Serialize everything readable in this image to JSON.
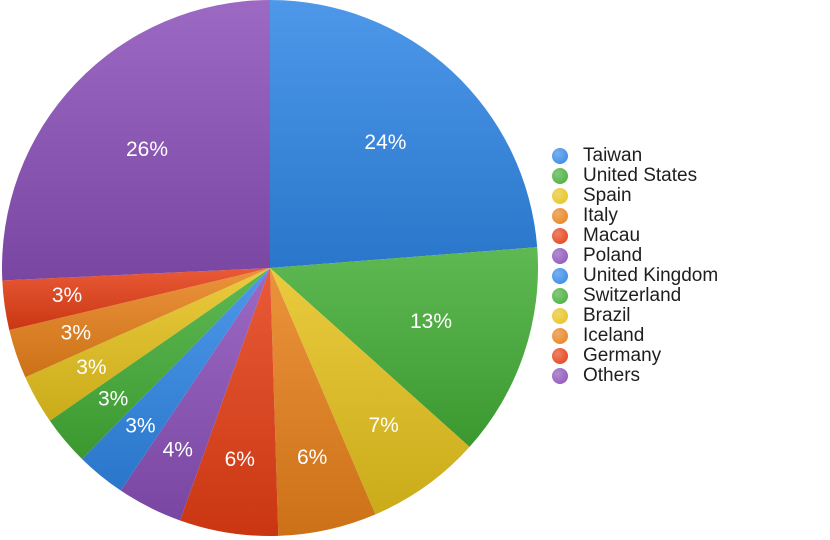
{
  "chart_data": {
    "type": "pie",
    "categories": [
      "Taiwan",
      "United States",
      "Spain",
      "Italy",
      "Macau",
      "Poland",
      "United Kingdom",
      "Switzerland",
      "Brazil",
      "Iceland",
      "Germany",
      "Others"
    ],
    "values": [
      24,
      13,
      7,
      6,
      6,
      4,
      3,
      3,
      3,
      3,
      3,
      26
    ],
    "labels": [
      "24%",
      "13%",
      "7%",
      "6%",
      "6%",
      "4%",
      "3%",
      "3%",
      "3%",
      "3%",
      "3%",
      "26%"
    ],
    "colors": [
      "#2f86e6",
      "#43ad35",
      "#e6c21c",
      "#e8801a",
      "#e53d14",
      "#8a4fb8",
      "#2f86e6",
      "#43ad35",
      "#e6c21c",
      "#e8801a",
      "#e53d14",
      "#8a4fb8"
    ],
    "legend_placement": "right",
    "title": ""
  }
}
